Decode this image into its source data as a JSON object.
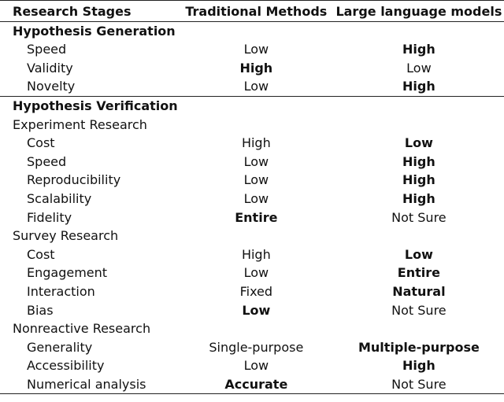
{
  "columns": [
    "Research Stages",
    "Traditional Methods",
    "Large language models"
  ],
  "rows": [
    {
      "type": "section",
      "label": "Hypothesis Generation"
    },
    {
      "type": "item",
      "label": "Speed",
      "trad": "Low",
      "llm": "High",
      "bold": "llm"
    },
    {
      "type": "item",
      "label": "Validity",
      "trad": "High",
      "llm": "Low",
      "bold": "trad"
    },
    {
      "type": "item",
      "label": "Novelty",
      "trad": "Low",
      "llm": "High",
      "bold": "llm"
    },
    {
      "type": "section",
      "label": "Hypothesis Verification",
      "rule": true
    },
    {
      "type": "subsection",
      "label": "Experiment Research"
    },
    {
      "type": "item",
      "label": "Cost",
      "trad": "High",
      "llm": "Low",
      "bold": "llm"
    },
    {
      "type": "item",
      "label": "Speed",
      "trad": "Low",
      "llm": "High",
      "bold": "llm"
    },
    {
      "type": "item",
      "label": "Reproducibility",
      "trad": "Low",
      "llm": "High",
      "bold": "llm"
    },
    {
      "type": "item",
      "label": "Scalability",
      "trad": "Low",
      "llm": "High",
      "bold": "llm"
    },
    {
      "type": "item",
      "label": "Fidelity",
      "trad": "Entire",
      "llm": "Not Sure",
      "bold": "trad"
    },
    {
      "type": "subsection",
      "label": "Survey Research"
    },
    {
      "type": "item",
      "label": "Cost",
      "trad": "High",
      "llm": "Low",
      "bold": "llm"
    },
    {
      "type": "item",
      "label": "Engagement",
      "trad": "Low",
      "llm": "Entire",
      "bold": "llm"
    },
    {
      "type": "item",
      "label": "Interaction",
      "trad": "Fixed",
      "llm": "Natural",
      "bold": "llm"
    },
    {
      "type": "item",
      "label": "Bias",
      "trad": "Low",
      "llm": "Not Sure",
      "bold": "trad"
    },
    {
      "type": "subsection",
      "label": "Nonreactive Research"
    },
    {
      "type": "item",
      "label": "Generality",
      "trad": "Single-purpose",
      "llm": "Multiple-purpose",
      "bold": "llm"
    },
    {
      "type": "item",
      "label": "Accessibility",
      "trad": "Low",
      "llm": "High",
      "bold": "llm"
    },
    {
      "type": "item",
      "label": "Numerical analysis",
      "trad": "Accurate",
      "llm": "Not Sure",
      "bold": "trad"
    }
  ]
}
